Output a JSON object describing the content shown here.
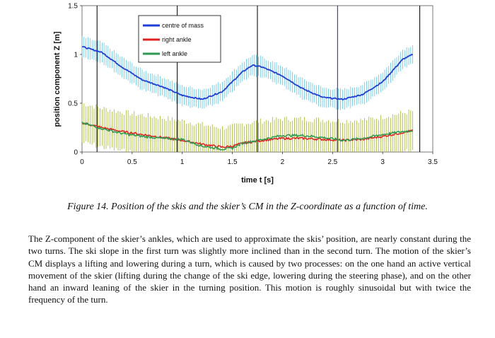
{
  "chart_data": {
    "type": "line",
    "title": "",
    "xlabel": "time t [s]",
    "ylabel": "position component Z [m]",
    "xlim": [
      0,
      3.5
    ],
    "ylim": [
      0,
      1.5
    ],
    "x_ticks": [
      "0",
      "0.5",
      "1",
      "1.5",
      "2",
      "2.5",
      "3",
      "3.5"
    ],
    "y_ticks": [
      "0",
      "0.5",
      "1",
      "1.5"
    ],
    "legend_position": "top-center",
    "vertical_markers": {
      "black": [
        0.15,
        0.95,
        1.75,
        2.55,
        3.37
      ],
      "blue": [
        2.55
      ]
    },
    "series": [
      {
        "name": "centre of mass",
        "color": "#1f3fd6",
        "error_color": "#5bc8e8",
        "error_halfwidth": 0.1,
        "x": [
          0,
          0.2,
          0.4,
          0.6,
          0.8,
          1.0,
          1.2,
          1.4,
          1.6,
          1.7,
          1.8,
          2.0,
          2.2,
          2.4,
          2.6,
          2.8,
          3.0,
          3.2,
          3.3
        ],
        "y": [
          1.08,
          1.02,
          0.87,
          0.74,
          0.67,
          0.58,
          0.54,
          0.62,
          0.82,
          0.89,
          0.87,
          0.78,
          0.65,
          0.56,
          0.54,
          0.59,
          0.72,
          0.95,
          1.0
        ]
      },
      {
        "name": "right ankle",
        "color": "#e02020",
        "error_color": "#a8b820",
        "error_halfwidth": 0.2,
        "x": [
          0,
          0.2,
          0.4,
          0.6,
          0.8,
          1.0,
          1.2,
          1.4,
          1.5,
          1.6,
          1.8,
          2.0,
          2.2,
          2.4,
          2.6,
          2.8,
          3.0,
          3.2,
          3.3
        ],
        "y": [
          0.3,
          0.25,
          0.21,
          0.18,
          0.15,
          0.12,
          0.08,
          0.05,
          0.06,
          0.09,
          0.12,
          0.14,
          0.14,
          0.13,
          0.12,
          0.13,
          0.16,
          0.2,
          0.22
        ]
      },
      {
        "name": "left ankle",
        "color": "#2a9a50",
        "error_color": "#a8b820",
        "error_halfwidth": 0.2,
        "x": [
          0,
          0.2,
          0.4,
          0.6,
          0.8,
          1.0,
          1.2,
          1.4,
          1.5,
          1.6,
          1.8,
          2.0,
          2.2,
          2.4,
          2.6,
          2.8,
          3.0,
          3.2,
          3.3
        ],
        "y": [
          0.3,
          0.24,
          0.19,
          0.16,
          0.14,
          0.13,
          0.06,
          0.03,
          0.04,
          0.09,
          0.13,
          0.17,
          0.17,
          0.15,
          0.12,
          0.14,
          0.18,
          0.21,
          0.22
        ]
      }
    ]
  },
  "caption": "Figure 14.  Position of the skis and the skier’s CM in the Z-coordinate as a function of time.",
  "paragraph": "The Z-component of the skier’s ankles, which are used to approximate the skis’ position, are nearly constant during the two turns. The ski slope in the first turn was slightly more inclined than in the second turn. The motion of the skier’s CM displays a lifting and lowering during a turn, which is caused by two processes: on the one hand an active vertical movement of the skier (lifting during the change of the ski edge, lowering during the steering phase), and on the other hand an inward leaning of the skier in the turning position. This motion is roughly sinusoidal but with twice the frequency of the turn."
}
